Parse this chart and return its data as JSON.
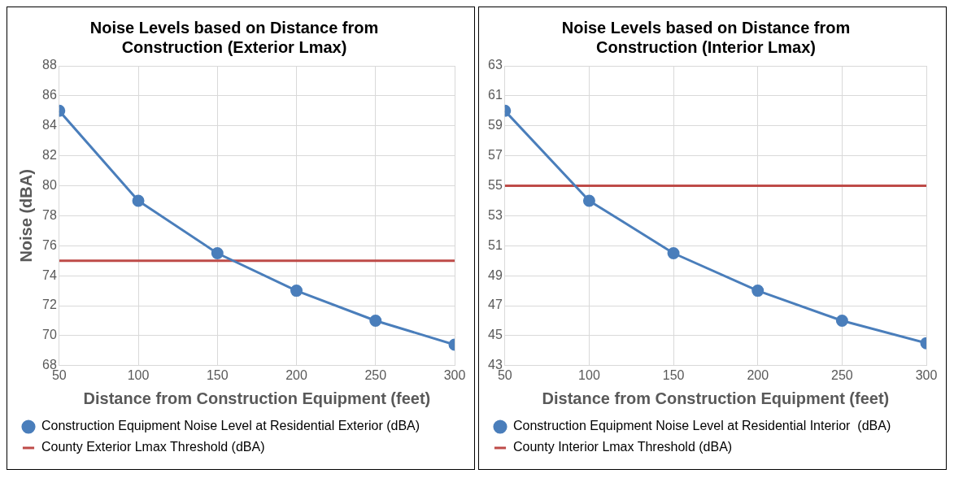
{
  "chart_data": [
    {
      "type": "line",
      "title": "Noise Levels based on Distance from Construction (Exterior Lmax)",
      "xlabel": "Distance from Construction Equipment (feet)",
      "ylabel": "Noise (dBA)",
      "x": [
        50,
        100,
        150,
        200,
        250,
        300
      ],
      "xlim": [
        50,
        300
      ],
      "xticks": [
        50,
        100,
        150,
        200,
        250,
        300
      ],
      "ylim": [
        68,
        88
      ],
      "yticks": [
        68,
        70,
        72,
        74,
        76,
        78,
        80,
        82,
        84,
        86,
        88
      ],
      "grid": true,
      "legend": "bottom",
      "series": [
        {
          "name": "Construction Equipment Noise Level at Residential Exterior (dBA)",
          "color": "#4a7ebb",
          "values": [
            85,
            79,
            75.5,
            73,
            71,
            69.4
          ],
          "marker": "circle"
        }
      ],
      "ref_lines": [
        {
          "axis": "y",
          "value": 75,
          "label": "County Exterior Lmax Threshold (dBA)",
          "color": "#be4b48"
        }
      ]
    },
    {
      "type": "line",
      "title": "Noise Levels based on Distance from Construction (Interior Lmax)",
      "xlabel": "Distance from Construction Equipment (feet)",
      "x": [
        50,
        100,
        150,
        200,
        250,
        300
      ],
      "xlim": [
        50,
        300
      ],
      "xticks": [
        50,
        100,
        150,
        200,
        250,
        300
      ],
      "ylim": [
        43,
        63
      ],
      "yticks": [
        43,
        45,
        47,
        49,
        51,
        53,
        55,
        57,
        59,
        61,
        63
      ],
      "grid": true,
      "legend": "bottom",
      "series": [
        {
          "name": "Construction Equipment Noise Level at Residential Interior  (dBA)",
          "color": "#4a7ebb",
          "values": [
            60,
            54,
            50.5,
            48,
            46,
            44.5
          ],
          "marker": "circle"
        }
      ],
      "ref_lines": [
        {
          "axis": "y",
          "value": 55,
          "label": "County Interior Lmax Threshold (dBA)",
          "color": "#be4b48"
        }
      ]
    }
  ]
}
